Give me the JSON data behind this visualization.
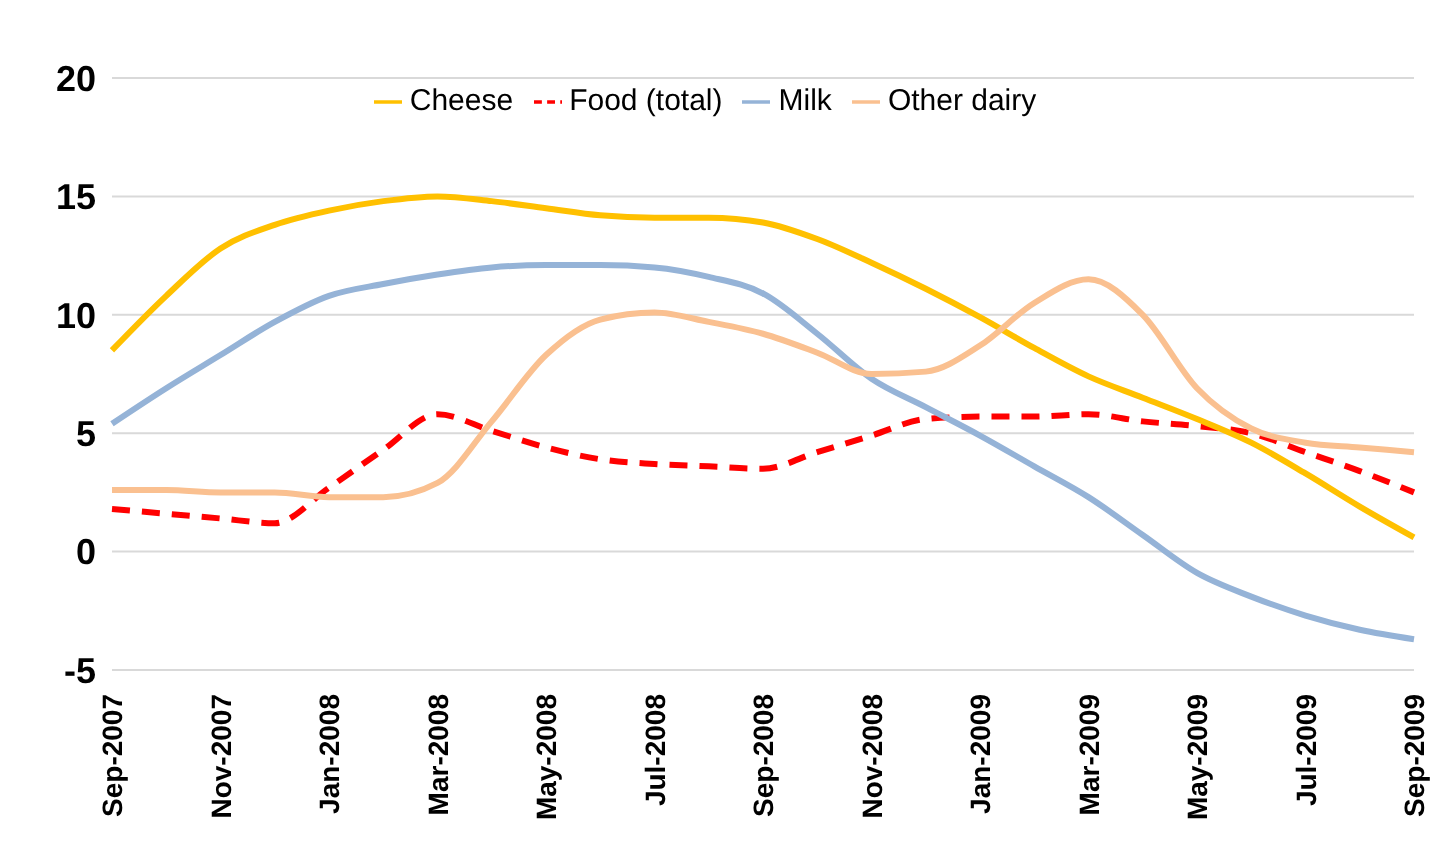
{
  "chart_data": {
    "type": "line",
    "categories": [
      "Sep-2007",
      null,
      "Nov-2007",
      null,
      "Jan-2008",
      null,
      "Mar-2008",
      null,
      "May-2008",
      null,
      "Jul-2008",
      null,
      "Sep-2008",
      null,
      "Nov-2008",
      null,
      "Jan-2009",
      null,
      "Mar-2009",
      null,
      "May-2009",
      null,
      "Jul-2009",
      null,
      "Sep-2009"
    ],
    "series": [
      {
        "name": "Food (total)",
        "color": "#ff0000",
        "line_style": "dashed",
        "values": [
          1.8,
          1.6,
          1.4,
          1.2,
          2.7,
          4.3,
          5.8,
          5.1,
          4.4,
          3.9,
          3.7,
          3.6,
          3.5,
          4.2,
          4.9,
          5.6,
          5.7,
          5.7,
          5.8,
          5.5,
          5.3,
          5.0,
          4.2,
          3.4,
          2.5
        ]
      },
      {
        "name": "Milk",
        "color": "#95b3d7",
        "values": [
          5.4,
          6.9,
          8.3,
          9.7,
          10.8,
          11.3,
          11.7,
          12.0,
          12.1,
          12.1,
          12.0,
          11.6,
          10.9,
          9.2,
          7.3,
          6.1,
          4.9,
          3.6,
          2.3,
          0.7,
          -0.9,
          -1.9,
          -2.7,
          -3.3,
          -3.7
        ]
      },
      {
        "name": "Cheese",
        "color": "#ffc000",
        "values": [
          8.5,
          10.8,
          12.8,
          13.8,
          14.4,
          14.8,
          15.0,
          14.8,
          14.5,
          14.2,
          14.1,
          14.1,
          13.9,
          13.2,
          12.2,
          11.1,
          9.9,
          8.6,
          7.4,
          6.5,
          5.6,
          4.6,
          3.3,
          1.9,
          0.6
        ]
      },
      {
        "name": "Other dairy",
        "color": "#fac090",
        "values": [
          2.6,
          2.6,
          2.5,
          2.5,
          2.3,
          2.3,
          2.9,
          5.5,
          8.3,
          9.8,
          10.1,
          9.7,
          9.2,
          8.4,
          7.5,
          7.6,
          8.7,
          10.5,
          11.5,
          10.0,
          6.9,
          5.2,
          4.6,
          4.4,
          4.2
        ]
      }
    ],
    "ylim": [
      -5,
      20
    ],
    "yticks": [
      -5,
      0,
      5,
      10,
      15,
      20
    ],
    "grid": "y",
    "legend": "top",
    "marker": "none",
    "line_style": "solid"
  }
}
